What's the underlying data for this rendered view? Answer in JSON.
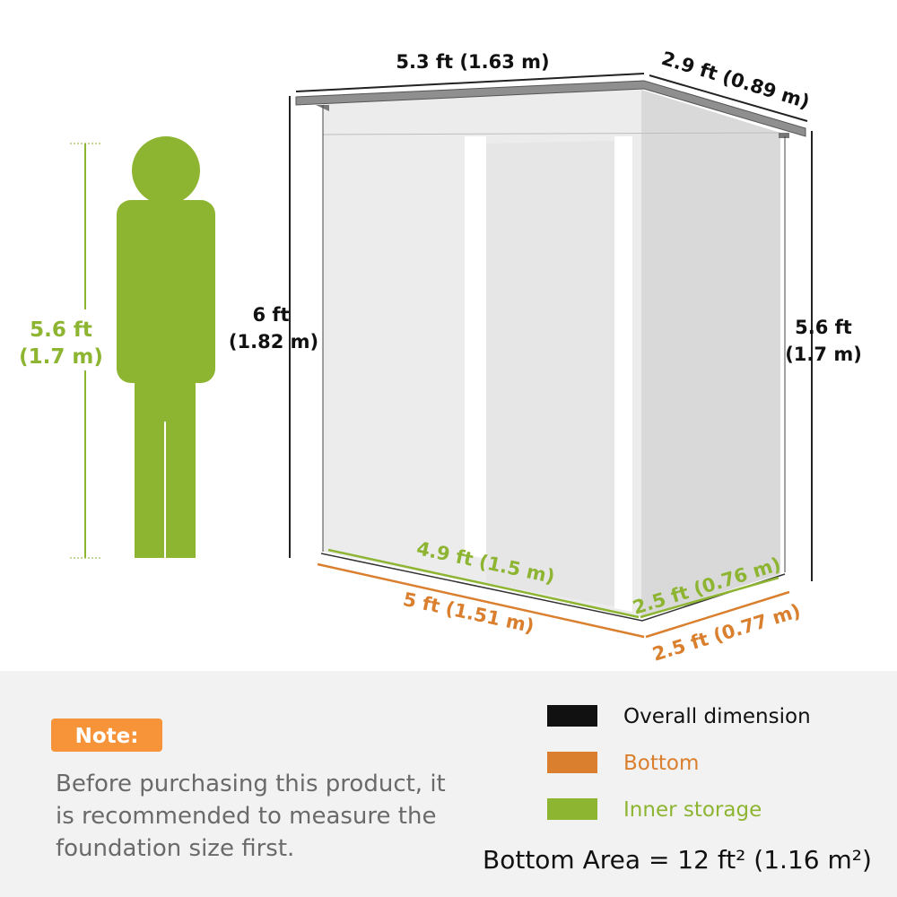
{
  "colors": {
    "overall": "#111111",
    "bottom": "#d97f2e",
    "inner": "#8db531",
    "note_badge": "#f7943a",
    "panel": "#f2f2f2"
  },
  "person": {
    "height_ft": "5.6 ft",
    "height_m": "(1.7 m)"
  },
  "shed": {
    "overall_width": "5.3 ft (1.63 m)",
    "overall_depth": "2.9 ft (0.89 m)",
    "overall_height_ft": "6 ft",
    "overall_height_m": "(1.82 m)",
    "side_height_ft": "5.6 ft",
    "side_height_m": "(1.7 m)",
    "inner_width": "4.9 ft (1.5 m)",
    "inner_depth": "2.5 ft (0.76 m)",
    "bottom_width": "5 ft (1.51 m)",
    "bottom_depth": "2.5 ft (0.77 m)"
  },
  "note": {
    "badge": "Note:",
    "lines": [
      "Before purchasing this product, it",
      "is recommended to measure the",
      "foundation size first."
    ]
  },
  "legend": [
    {
      "label": "Overall dimension"
    },
    {
      "label": "Bottom"
    },
    {
      "label": "Inner storage"
    }
  ],
  "bottom_area": "Bottom Area = 12 ft² (1.16 m²)"
}
